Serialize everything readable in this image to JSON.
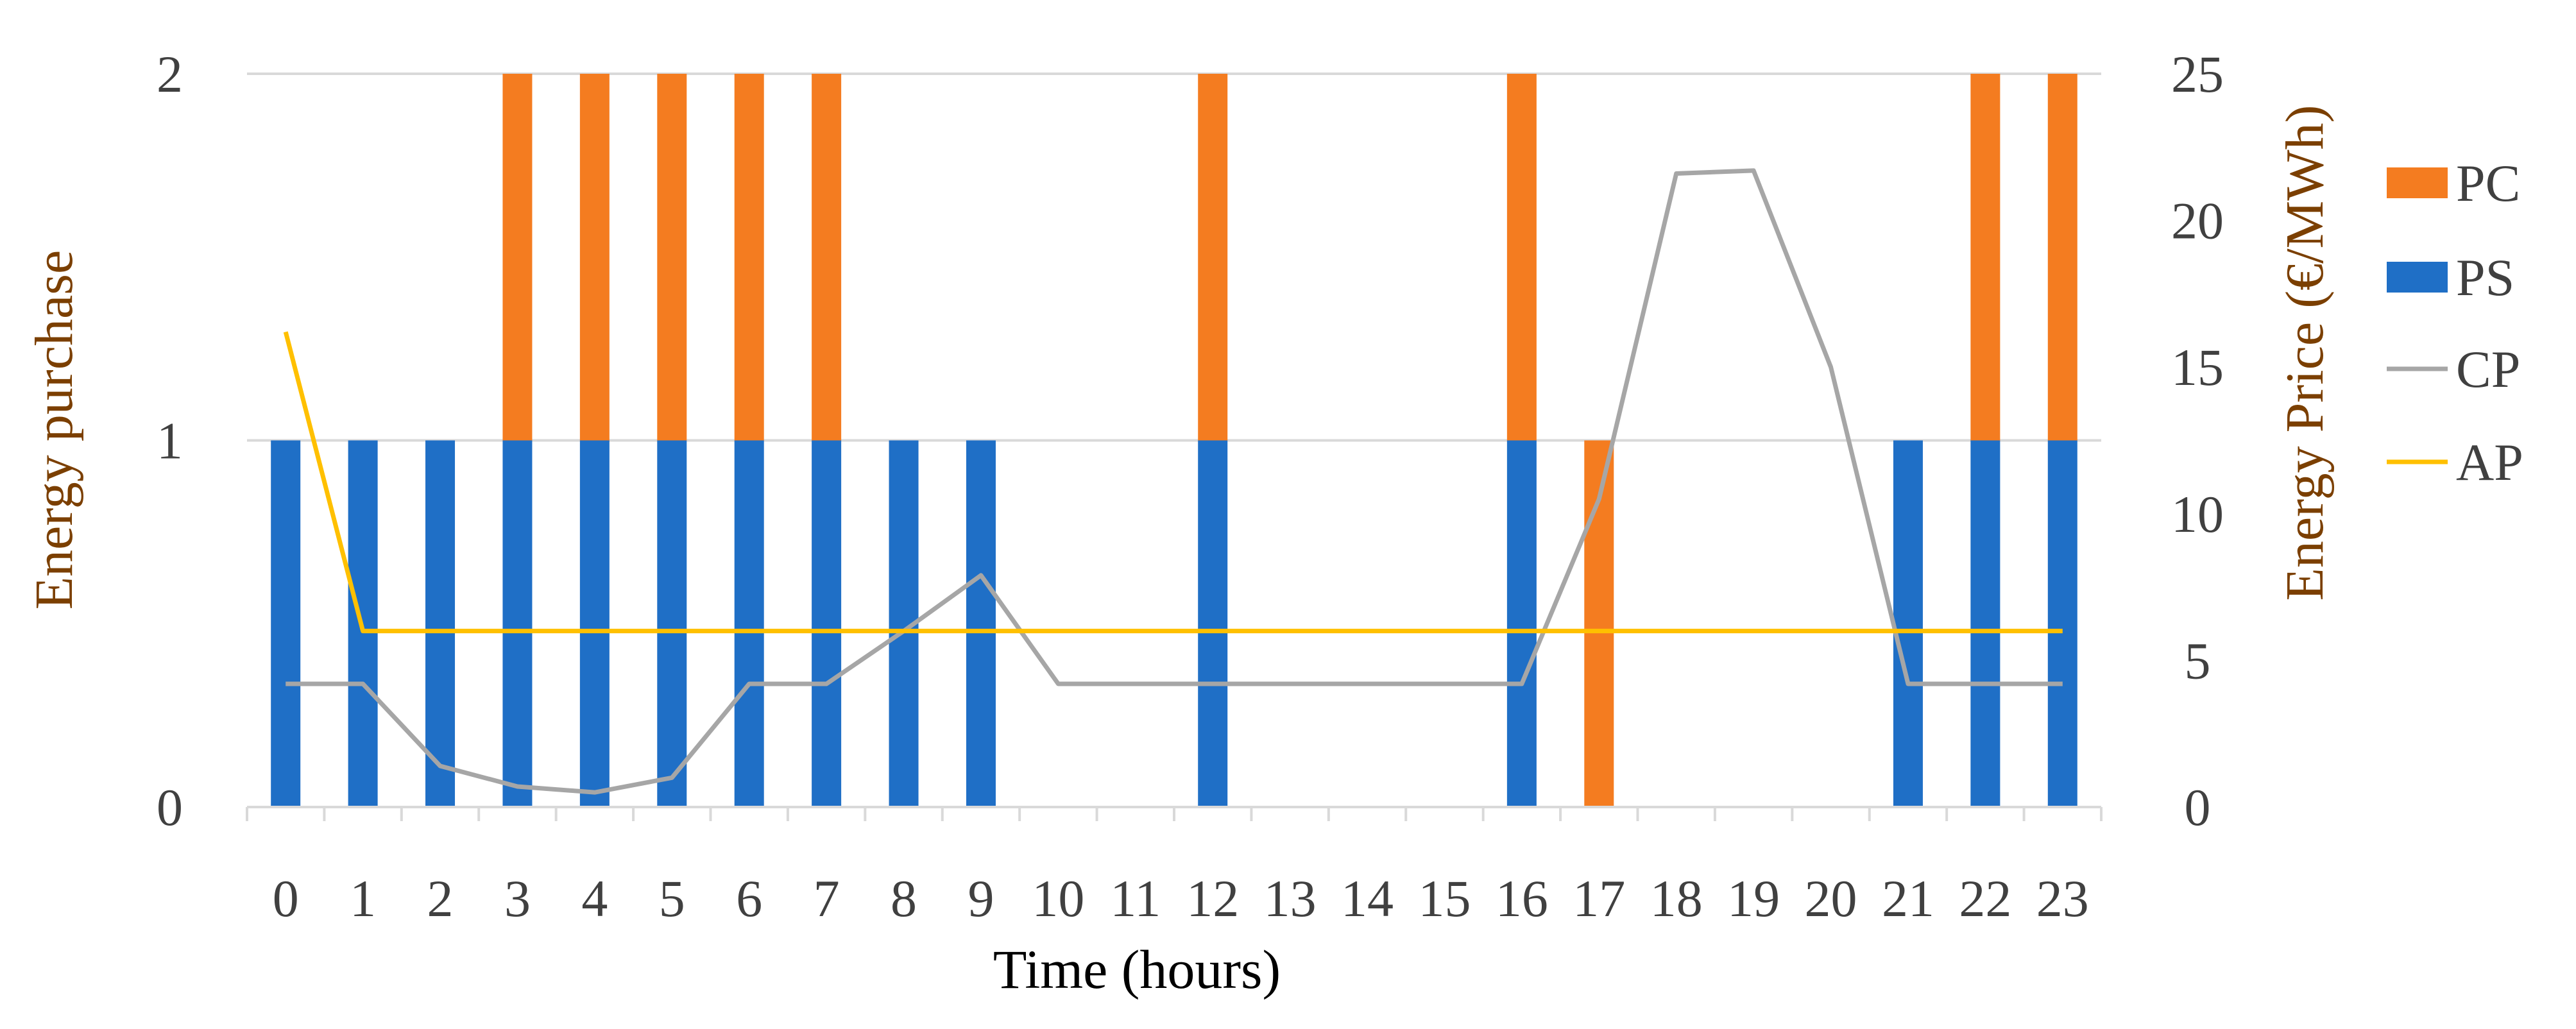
{
  "chart_data": {
    "type": "bar",
    "x": [
      0,
      1,
      2,
      3,
      4,
      5,
      6,
      7,
      8,
      9,
      10,
      11,
      12,
      13,
      14,
      15,
      16,
      17,
      18,
      19,
      20,
      21,
      22,
      23
    ],
    "xlabel": "Time (hours)",
    "ylabel": "Energy purchase",
    "y2label": "Energy Price  (€/MWh)",
    "ylim": [
      0,
      2
    ],
    "y2lim": [
      0,
      25
    ],
    "yticks": [
      0,
      1,
      2
    ],
    "y2ticks": [
      0,
      5,
      10,
      15,
      20,
      25
    ],
    "grid": true,
    "legend_position": "right",
    "stacked_bars": [
      {
        "name": "PS",
        "color": "#1F6FC6",
        "values": [
          1,
          1,
          1,
          1,
          1,
          1,
          1,
          1,
          1,
          1,
          0,
          0,
          1,
          0,
          0,
          0,
          1,
          0,
          0,
          0,
          0,
          1,
          1,
          1
        ]
      },
      {
        "name": "PC",
        "color": "#F47C20",
        "values": [
          0,
          0,
          0,
          1,
          1,
          1,
          1,
          1,
          0,
          0,
          0,
          0,
          1,
          0,
          0,
          0,
          1,
          1,
          0,
          0,
          0,
          0,
          1,
          1
        ]
      }
    ],
    "lines": [
      {
        "name": "CP",
        "color": "#A6A6A6",
        "axis": "right",
        "values": [
          4.2,
          4.2,
          1.4,
          0.7,
          0.5,
          1.0,
          4.2,
          4.2,
          6.0,
          7.9,
          4.2,
          4.2,
          4.2,
          4.2,
          4.2,
          4.2,
          4.2,
          10.5,
          21.6,
          21.7,
          15.0,
          4.2,
          4.2,
          4.2
        ]
      },
      {
        "name": "AP",
        "color": "#FFC000",
        "axis": "right",
        "values": [
          16.2,
          6.0,
          6.0,
          6.0,
          6.0,
          6.0,
          6.0,
          6.0,
          6.0,
          6.0,
          6.0,
          6.0,
          6.0,
          6.0,
          6.0,
          6.0,
          6.0,
          6.0,
          6.0,
          6.0,
          6.0,
          6.0,
          6.0,
          6.0
        ]
      }
    ],
    "legend": [
      "PC",
      "PS",
      "CP",
      "AP"
    ]
  }
}
